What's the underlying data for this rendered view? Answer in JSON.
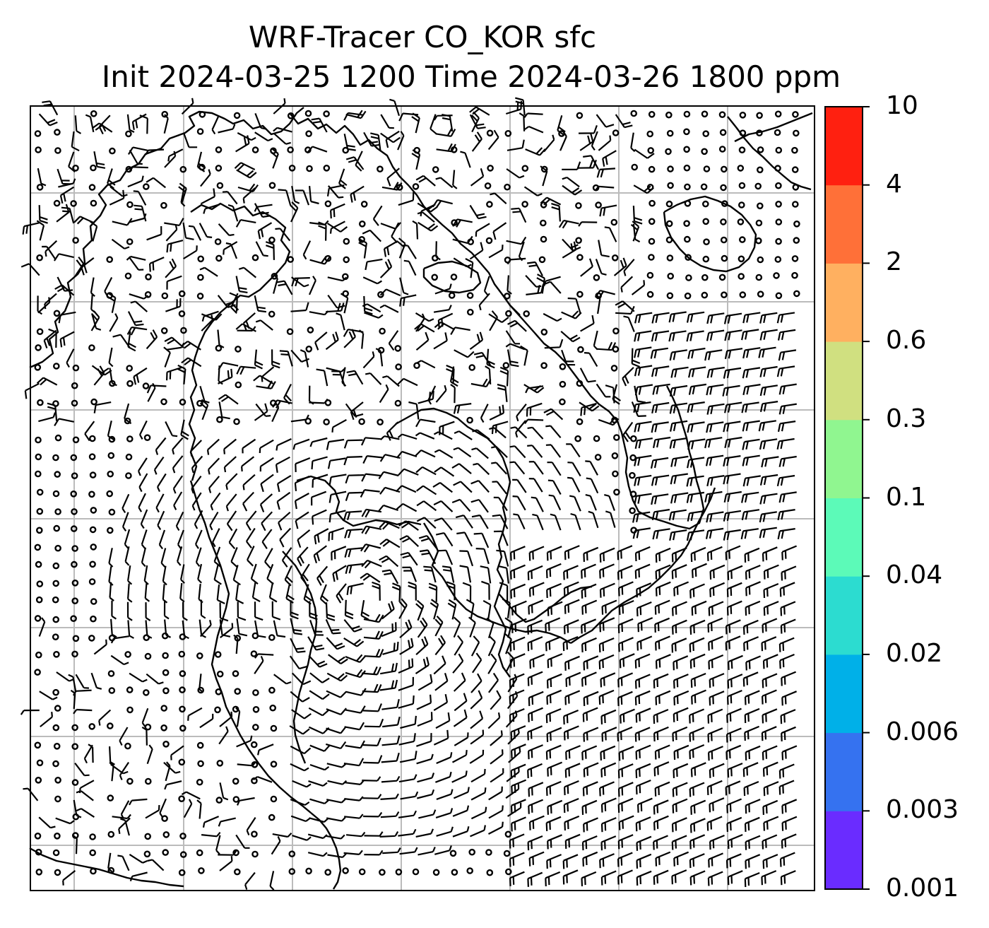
{
  "title": {
    "line1": "WRF-Tracer CO_KOR sfc",
    "line2": "Init 2024-03-25 1200 Time 2024-03-26 1800 ppm"
  },
  "colorbar": {
    "levels": [
      "0.001",
      "0.003",
      "0.006",
      "0.02",
      "0.04",
      "0.1",
      "0.3",
      "0.6",
      "2",
      "4",
      "10"
    ],
    "colors": [
      "#6a2cff",
      "#3572f0",
      "#00b0e8",
      "#2cdcd0",
      "#5cfab8",
      "#90f690",
      "#d0e080",
      "#ffb060",
      "#ff7038",
      "#ff2010"
    ]
  },
  "map": {
    "grid": true,
    "grid_color": "#bbbbbb",
    "coastline_color": "#000000",
    "wind_barbs": true
  }
}
